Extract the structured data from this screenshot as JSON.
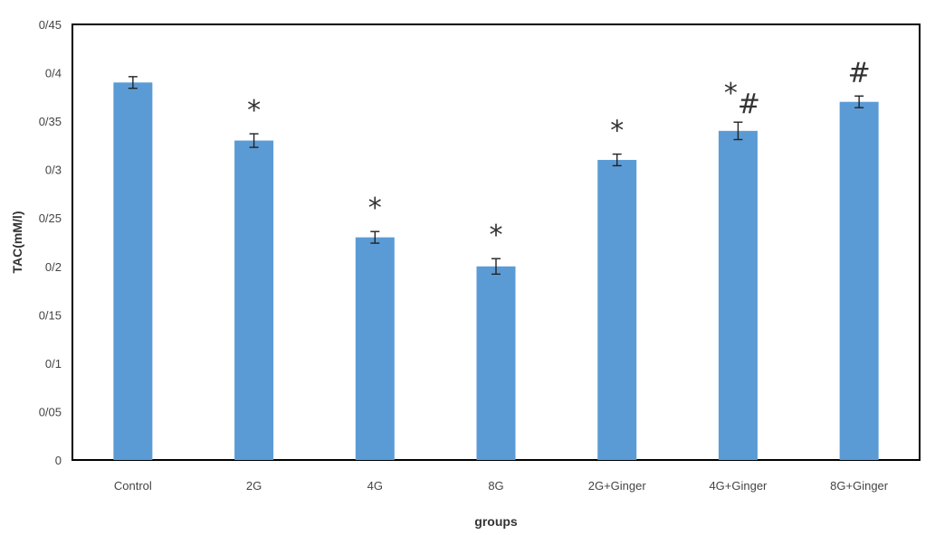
{
  "chart_data": {
    "type": "bar",
    "title": "",
    "xlabel": "groups",
    "ylabel": "TAC(mM/l)",
    "ylim": [
      0,
      0.45
    ],
    "yticks": [
      0,
      0.05,
      0.1,
      0.15,
      0.2,
      0.25,
      0.3,
      0.35,
      0.4,
      0.45
    ],
    "ytick_labels": [
      "0",
      "0/05",
      "0/1",
      "0/15",
      "0/2",
      "0/25",
      "0/3",
      "0/35",
      "0/4",
      "0/45"
    ],
    "categories": [
      "Control",
      "2G",
      "4G",
      "8G",
      "2G+Ginger",
      "4G+Ginger",
      "8G+Ginger"
    ],
    "values": [
      0.39,
      0.33,
      0.23,
      0.2,
      0.31,
      0.34,
      0.37
    ],
    "errors": [
      0.006,
      0.007,
      0.006,
      0.008,
      0.006,
      0.009,
      0.006
    ],
    "annotations": [
      "",
      "*",
      "*",
      "*",
      "*",
      "*#",
      "#"
    ],
    "grid": false,
    "legend": "none",
    "bar_color": "#5b9bd5"
  }
}
